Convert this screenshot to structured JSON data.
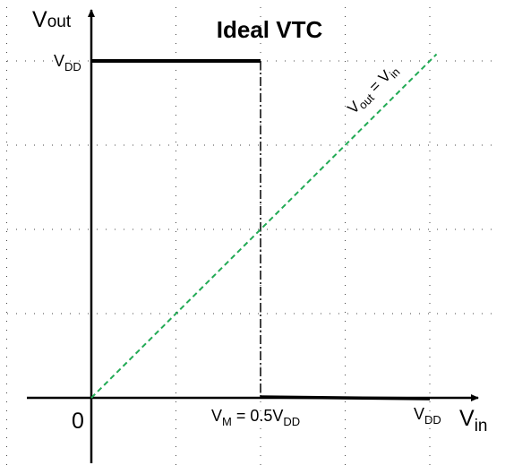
{
  "chart_data": {
    "type": "line",
    "title": "Ideal VTC",
    "xlabel": {
      "main": "V",
      "sub": "in"
    },
    "ylabel": {
      "main": "V",
      "sub": "out"
    },
    "xlim": [
      0,
      1.1
    ],
    "ylim": [
      0,
      1.14
    ],
    "grid": true,
    "origin_label": "0",
    "y_ticks": [
      {
        "value": 1,
        "main": "V",
        "sub": "DD"
      }
    ],
    "x_ticks": [
      {
        "value": 0.5,
        "main": "V",
        "sub": "M",
        "suffix_main": " = 0.5V",
        "suffix_sub": "DD"
      },
      {
        "value": 1,
        "main": "V",
        "sub": "DD"
      }
    ],
    "series": [
      {
        "kind": "vtc",
        "color": "#000000",
        "x": [
          0,
          0.5,
          0.5,
          1
        ],
        "y": [
          1,
          1,
          0,
          0
        ]
      },
      {
        "kind": "reference",
        "name": {
          "a": "V",
          "a_sub": "out",
          "eq": " = V",
          "b_sub": "in"
        },
        "color": "#22aa55",
        "x": [
          0,
          1.02
        ],
        "y": [
          0,
          1.02
        ]
      }
    ]
  }
}
